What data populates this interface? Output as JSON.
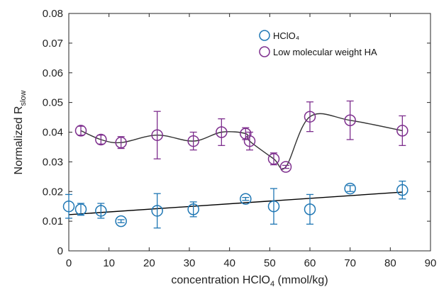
{
  "chart_data": {
    "type": "scatter",
    "xlabel": "concentration HClO",
    "xlabel_sub": "4",
    "xlabel_unit": " (mmol/kg)",
    "ylabel": "Normalized R",
    "ylabel_sub": "slow",
    "xlim": [
      0,
      90
    ],
    "ylim": [
      0,
      0.08
    ],
    "xticks": [
      0,
      10,
      20,
      30,
      40,
      50,
      60,
      70,
      80,
      90
    ],
    "xtick_labels": [
      "0",
      "10",
      "20",
      "30",
      "40",
      "50",
      "60",
      "70",
      "80",
      "90"
    ],
    "yticks": [
      0,
      0.01,
      0.02,
      0.03,
      0.04,
      0.05,
      0.06,
      0.07,
      0.08
    ],
    "ytick_labels": [
      "0",
      "0.01",
      "0.02",
      "0.03",
      "0.04",
      "0.05",
      "0.06",
      "0.07",
      "0.08"
    ],
    "grid": false,
    "legend_position": "top-right",
    "series": [
      {
        "name": "HClO₄",
        "color": "#1f77b4",
        "marker": "open-circle",
        "x": [
          0,
          3,
          8,
          13,
          22,
          31,
          44,
          51,
          60,
          70,
          83
        ],
        "y": [
          0.015,
          0.014,
          0.0135,
          0.01,
          0.0135,
          0.014,
          0.0175,
          0.015,
          0.014,
          0.021,
          0.0205
        ],
        "err": [
          0.004,
          0.002,
          0.0025,
          0.0005,
          0.0058,
          0.0025,
          0.0005,
          0.006,
          0.005,
          0.001,
          0.003
        ],
        "fit": {
          "type": "linear",
          "points": [
            [
              0,
              0.0122
            ],
            [
              83,
              0.0198
            ]
          ],
          "color": "#000000"
        }
      },
      {
        "name": "Low molecular weight HA",
        "color": "#7e2f8e",
        "marker": "open-circle",
        "x": [
          3,
          8,
          13,
          22,
          31,
          38,
          44,
          45,
          51,
          54,
          60,
          70,
          83
        ],
        "y": [
          0.0405,
          0.0375,
          0.0365,
          0.039,
          0.037,
          0.04,
          0.0395,
          0.037,
          0.031,
          0.0283,
          0.0452,
          0.044,
          0.0405
        ],
        "err": [
          0.0015,
          0.0015,
          0.002,
          0.008,
          0.003,
          0.0045,
          0.002,
          0.003,
          0.002,
          0.0005,
          0.005,
          0.0065,
          0.005
        ],
        "fit": {
          "type": "smooth",
          "color": "#333333"
        }
      }
    ]
  }
}
